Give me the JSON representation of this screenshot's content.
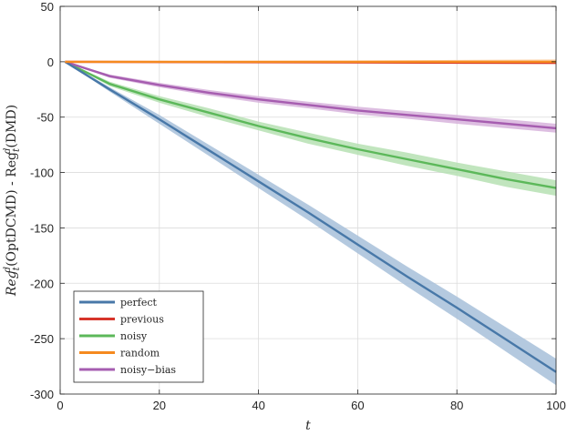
{
  "chart_data": {
    "type": "line",
    "xlabel": "t",
    "ylabel_parts": [
      "Reg",
      "t",
      "d",
      "(OptDCMD) - Reg",
      "t",
      "d",
      "(DMD)"
    ],
    "xlim": [
      0,
      100
    ],
    "ylim": [
      -300,
      50
    ],
    "xticks": [
      0,
      20,
      40,
      60,
      80,
      100
    ],
    "yticks": [
      50,
      0,
      -50,
      -100,
      -150,
      -200,
      -250,
      -300
    ],
    "xtick_labels": [
      "0",
      "20",
      "40",
      "60",
      "80",
      "100"
    ],
    "ytick_labels": [
      "50",
      "0",
      "-50",
      "-100",
      "-150",
      "-200",
      "-250",
      "-300"
    ],
    "grid": true,
    "legend_position": "bottom-left",
    "series": [
      {
        "name": "perfect",
        "color": "#4878a8",
        "band_color": "#a7c0d9",
        "x": [
          1,
          10,
          20,
          30,
          40,
          50,
          60,
          70,
          80,
          90,
          100
        ],
        "y": [
          0,
          -25,
          -52,
          -80,
          -108,
          -136,
          -165,
          -194,
          -222,
          -251,
          -280
        ],
        "band": [
          0,
          2,
          4,
          5,
          6,
          7,
          8,
          9,
          10,
          11,
          12
        ]
      },
      {
        "name": "previous",
        "color": "#d7342a",
        "band_color": "#efaaa5",
        "x": [
          1,
          100
        ],
        "y": [
          0,
          -1
        ],
        "band": [
          0,
          1
        ]
      },
      {
        "name": "noisy",
        "color": "#5cb85a",
        "band_color": "#b6e0b3",
        "x": [
          1,
          10,
          20,
          30,
          40,
          50,
          60,
          70,
          80,
          90,
          100
        ],
        "y": [
          0,
          -20,
          -34,
          -46,
          -58,
          -69,
          -79,
          -88,
          -97,
          -106,
          -114
        ],
        "band": [
          0,
          2,
          3,
          4,
          4,
          5,
          5,
          6,
          6,
          7,
          7
        ]
      },
      {
        "name": "random",
        "color": "#f58a1f",
        "band_color": "#fbc894",
        "x": [
          1,
          100
        ],
        "y": [
          0,
          0
        ],
        "band": [
          0,
          2
        ]
      },
      {
        "name": "noisy−bias",
        "color": "#a65db0",
        "band_color": "#d7b3dc",
        "x": [
          1,
          10,
          20,
          30,
          40,
          50,
          60,
          70,
          80,
          90,
          100
        ],
        "y": [
          0,
          -13,
          -21,
          -28,
          -34,
          -39,
          -44,
          -48,
          -52,
          -56,
          -60
        ],
        "band": [
          0,
          1.5,
          2,
          2.5,
          3,
          3,
          3.5,
          3.5,
          4,
          4,
          4
        ]
      }
    ]
  }
}
